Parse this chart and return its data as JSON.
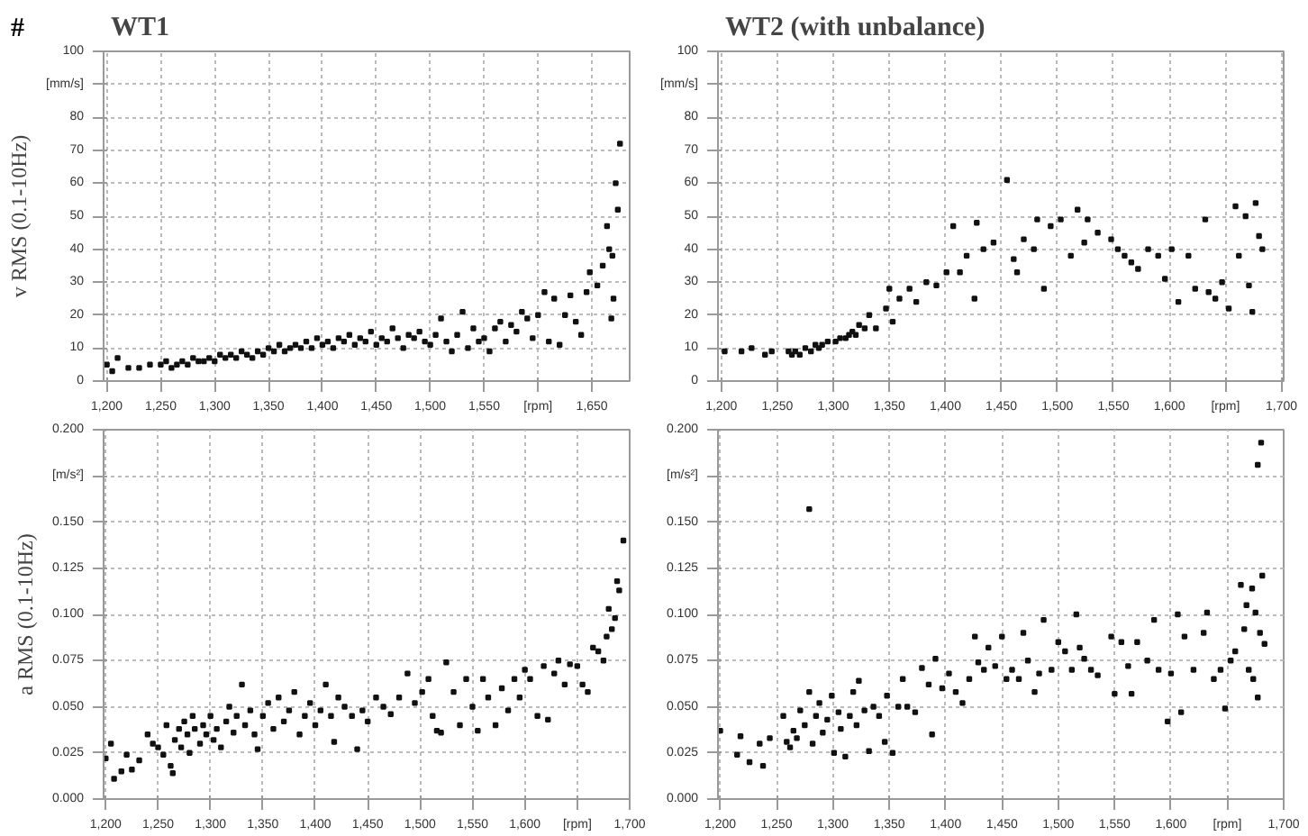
{
  "chart_data": [
    {
      "type": "scatter",
      "title": "WT1",
      "ylabel": "v RMS (0.1-10Hz)",
      "annotations": [
        "#"
      ],
      "xlim": [
        1197,
        1685
      ],
      "ylim": [
        0,
        100
      ],
      "xticks": [
        {
          "value": 1200,
          "label": "1,200"
        },
        {
          "value": 1250,
          "label": "1,250"
        },
        {
          "value": 1300,
          "label": "1,300"
        },
        {
          "value": 1350,
          "label": "1,350"
        },
        {
          "value": 1400,
          "label": "1,400"
        },
        {
          "value": 1450,
          "label": "1,450"
        },
        {
          "value": 1500,
          "label": "1,500"
        },
        {
          "value": 1550,
          "label": "1,550"
        },
        {
          "value": 1600,
          "label": "[rpm]"
        },
        {
          "value": 1650,
          "label": "1,650"
        }
      ],
      "yticks": [
        0,
        10,
        20,
        30,
        40,
        50,
        60,
        70,
        80,
        {
          "value": 90,
          "label": "[mm/s]"
        },
        100
      ],
      "grid": true,
      "marker": "square",
      "series": [
        {
          "color": "#111111",
          "x": [
            1200,
            1205,
            1210,
            1220,
            1230,
            1240,
            1250,
            1255,
            1260,
            1265,
            1270,
            1275,
            1280,
            1285,
            1290,
            1295,
            1300,
            1305,
            1310,
            1315,
            1320,
            1325,
            1330,
            1335,
            1340,
            1345,
            1350,
            1355,
            1360,
            1365,
            1370,
            1375,
            1380,
            1385,
            1390,
            1395,
            1400,
            1405,
            1410,
            1415,
            1420,
            1425,
            1430,
            1435,
            1440,
            1445,
            1450,
            1455,
            1460,
            1465,
            1470,
            1475,
            1480,
            1485,
            1490,
            1495,
            1500,
            1505,
            1510,
            1515,
            1520,
            1525,
            1530,
            1535,
            1540,
            1545,
            1550,
            1555,
            1560,
            1565,
            1570,
            1575,
            1580,
            1585,
            1590,
            1595,
            1600,
            1606,
            1610,
            1615,
            1620,
            1625,
            1630,
            1635,
            1640,
            1645,
            1648,
            1655,
            1660,
            1664,
            1666,
            1668,
            1669,
            1670,
            1672,
            1674,
            1676
          ],
          "values": [
            5,
            3,
            7,
            4,
            4,
            5,
            5,
            6,
            4,
            5,
            6,
            5,
            7,
            6,
            6,
            7,
            6,
            8,
            7,
            8,
            7,
            9,
            8,
            7,
            9,
            8,
            10,
            9,
            11,
            9,
            10,
            11,
            10,
            12,
            10,
            13,
            11,
            12,
            10,
            13,
            12,
            14,
            11,
            13,
            12,
            15,
            11,
            13,
            12,
            16,
            13,
            10,
            14,
            13,
            15,
            12,
            11,
            14,
            19,
            12,
            9,
            14,
            21,
            10,
            16,
            12,
            13,
            9,
            16,
            18,
            12,
            17,
            15,
            21,
            19,
            13,
            20,
            27,
            12,
            25,
            11,
            20,
            26,
            18,
            14,
            27,
            33,
            29,
            35,
            47,
            40,
            19,
            38,
            25,
            60,
            52,
            72
          ]
        }
      ]
    },
    {
      "type": "scatter",
      "title": "WT2 (with unbalance)",
      "xlim": [
        1197,
        1702
      ],
      "ylim": [
        0,
        100
      ],
      "xticks": [
        {
          "value": 1200,
          "label": "1,200"
        },
        {
          "value": 1250,
          "label": "1,250"
        },
        {
          "value": 1300,
          "label": "1,300"
        },
        {
          "value": 1350,
          "label": "1,350"
        },
        {
          "value": 1400,
          "label": "1,400"
        },
        {
          "value": 1450,
          "label": "1,450"
        },
        {
          "value": 1500,
          "label": "1,500"
        },
        {
          "value": 1550,
          "label": "1,550"
        },
        {
          "value": 1600,
          "label": "1,600"
        },
        {
          "value": 1650,
          "label": "[rpm]"
        },
        {
          "value": 1700,
          "label": "1,700"
        }
      ],
      "yticks": [
        0,
        10,
        20,
        30,
        40,
        50,
        60,
        70,
        80,
        {
          "value": 90,
          "label": "[mm/s]"
        },
        100
      ],
      "grid": true,
      "marker": "square",
      "series": [
        {
          "color": "#111111",
          "x": [
            1203,
            1218,
            1227,
            1239,
            1245,
            1260,
            1263,
            1266,
            1270,
            1275,
            1280,
            1284,
            1287,
            1290,
            1295,
            1302,
            1306,
            1311,
            1314,
            1317,
            1320,
            1323,
            1328,
            1332,
            1338,
            1347,
            1350,
            1353,
            1359,
            1368,
            1374,
            1383,
            1392,
            1401,
            1407,
            1413,
            1419,
            1426,
            1428,
            1434,
            1443,
            1455,
            1461,
            1464,
            1470,
            1479,
            1482,
            1488,
            1494,
            1503,
            1512,
            1518,
            1524,
            1527,
            1536,
            1548,
            1554,
            1560,
            1566,
            1572,
            1581,
            1590,
            1596,
            1602,
            1608,
            1617,
            1623,
            1632,
            1635,
            1641,
            1647,
            1653,
            1659,
            1662,
            1668,
            1671,
            1674,
            1677,
            1680,
            1683
          ],
          "values": [
            9,
            9,
            10,
            8,
            9,
            9,
            8,
            9,
            8,
            10,
            9,
            11,
            10,
            11,
            12,
            12,
            13,
            13,
            14,
            15,
            14,
            17,
            16,
            20,
            16,
            22,
            28,
            18,
            25,
            28,
            24,
            30,
            29,
            33,
            47,
            33,
            38,
            25,
            48,
            40,
            42,
            61,
            37,
            33,
            43,
            40,
            49,
            28,
            47,
            49,
            38,
            52,
            42,
            49,
            45,
            43,
            40,
            38,
            36,
            34,
            40,
            38,
            31,
            40,
            24,
            38,
            28,
            49,
            27,
            25,
            30,
            22,
            53,
            38,
            50,
            29,
            21,
            54,
            44,
            40
          ]
        }
      ]
    },
    {
      "type": "scatter",
      "ylabel": "a RMS (0.1-10Hz)",
      "xlim": [
        1198,
        1700
      ],
      "ylim": [
        0,
        0.2
      ],
      "xticks": [
        {
          "value": 1200,
          "label": "1,200"
        },
        {
          "value": 1250,
          "label": "1,250"
        },
        {
          "value": 1300,
          "label": "1,300"
        },
        {
          "value": 1350,
          "label": "1,350"
        },
        {
          "value": 1400,
          "label": "1,400"
        },
        {
          "value": 1450,
          "label": "1,450"
        },
        {
          "value": 1500,
          "label": "1,500"
        },
        {
          "value": 1550,
          "label": "1,550"
        },
        {
          "value": 1600,
          "label": "1,600"
        },
        {
          "value": 1650,
          "label": "[rpm]"
        },
        {
          "value": 1700,
          "label": "1,700"
        }
      ],
      "yticks": [
        {
          "value": 0,
          "label": "0.000"
        },
        {
          "value": 0.025,
          "label": "0.025"
        },
        {
          "value": 0.05,
          "label": "0.050"
        },
        {
          "value": 0.075,
          "label": "0.075"
        },
        {
          "value": 0.1,
          "label": "0.100"
        },
        {
          "value": 0.125,
          "label": "0.125"
        },
        {
          "value": 0.15,
          "label": "0.150"
        },
        {
          "value": 0.175,
          "label": "[m/s²]"
        },
        {
          "value": 0.2,
          "label": "0.200"
        }
      ],
      "grid": true,
      "marker": "square",
      "series": [
        {
          "color": "#111111",
          "x": [
            1200,
            1205,
            1208,
            1215,
            1220,
            1225,
            1232,
            1240,
            1245,
            1250,
            1255,
            1258,
            1262,
            1264,
            1266,
            1270,
            1272,
            1275,
            1278,
            1280,
            1283,
            1285,
            1290,
            1293,
            1296,
            1300,
            1303,
            1306,
            1310,
            1315,
            1318,
            1322,
            1325,
            1330,
            1333,
            1338,
            1342,
            1345,
            1350,
            1355,
            1360,
            1365,
            1370,
            1375,
            1380,
            1385,
            1390,
            1395,
            1400,
            1405,
            1410,
            1415,
            1418,
            1422,
            1428,
            1435,
            1440,
            1445,
            1450,
            1458,
            1465,
            1472,
            1480,
            1488,
            1495,
            1502,
            1508,
            1512,
            1516,
            1520,
            1525,
            1532,
            1538,
            1544,
            1550,
            1555,
            1560,
            1565,
            1572,
            1578,
            1584,
            1590,
            1595,
            1600,
            1605,
            1612,
            1618,
            1622,
            1628,
            1632,
            1638,
            1643,
            1650,
            1655,
            1660,
            1665,
            1670,
            1675,
            1678,
            1680,
            1683,
            1686,
            1688,
            1690,
            1694
          ],
          "values": [
            0.022,
            0.03,
            0.011,
            0.015,
            0.024,
            0.016,
            0.021,
            0.035,
            0.03,
            0.028,
            0.024,
            0.04,
            0.018,
            0.014,
            0.032,
            0.038,
            0.028,
            0.042,
            0.035,
            0.025,
            0.045,
            0.038,
            0.03,
            0.04,
            0.035,
            0.045,
            0.032,
            0.038,
            0.028,
            0.042,
            0.05,
            0.036,
            0.045,
            0.062,
            0.04,
            0.048,
            0.035,
            0.027,
            0.045,
            0.052,
            0.038,
            0.055,
            0.042,
            0.048,
            0.058,
            0.035,
            0.045,
            0.052,
            0.04,
            0.048,
            0.062,
            0.045,
            0.031,
            0.055,
            0.05,
            0.045,
            0.027,
            0.048,
            0.042,
            0.055,
            0.05,
            0.046,
            0.055,
            0.068,
            0.052,
            0.058,
            0.065,
            0.045,
            0.037,
            0.036,
            0.074,
            0.058,
            0.04,
            0.065,
            0.05,
            0.037,
            0.065,
            0.055,
            0.04,
            0.06,
            0.048,
            0.065,
            0.055,
            0.07,
            0.065,
            0.045,
            0.072,
            0.043,
            0.068,
            0.075,
            0.062,
            0.073,
            0.072,
            0.062,
            0.058,
            0.082,
            0.08,
            0.075,
            0.088,
            0.103,
            0.092,
            0.098,
            0.118,
            0.113,
            0.14
          ]
        }
      ]
    },
    {
      "type": "scatter",
      "xlim": [
        1198,
        1700
      ],
      "ylim": [
        0,
        0.2
      ],
      "xticks": [
        {
          "value": 1200,
          "label": "1,200"
        },
        {
          "value": 1250,
          "label": "1,250"
        },
        {
          "value": 1300,
          "label": "1,300"
        },
        {
          "value": 1350,
          "label": "1,350"
        },
        {
          "value": 1400,
          "label": "1,400"
        },
        {
          "value": 1450,
          "label": "1,450"
        },
        {
          "value": 1500,
          "label": "1,500"
        },
        {
          "value": 1550,
          "label": "1,550"
        },
        {
          "value": 1600,
          "label": "1,600"
        },
        {
          "value": 1650,
          "label": "[rpm]"
        },
        {
          "value": 1700,
          "label": "1,700"
        }
      ],
      "yticks": [
        {
          "value": 0,
          "label": "0.000"
        },
        {
          "value": 0.025,
          "label": "0.025"
        },
        {
          "value": 0.05,
          "label": "0.050"
        },
        {
          "value": 0.075,
          "label": "0.075"
        },
        {
          "value": 0.1,
          "label": "0.100"
        },
        {
          "value": 0.125,
          "label": "0.125"
        },
        {
          "value": 0.15,
          "label": "0.150"
        },
        {
          "value": 0.175,
          "label": "[m/s²]"
        },
        {
          "value": 0.2,
          "label": "0.200"
        }
      ],
      "grid": true,
      "marker": "square",
      "series": [
        {
          "color": "#111111",
          "x": [
            1200,
            1215,
            1218,
            1226,
            1235,
            1238,
            1244,
            1256,
            1259,
            1262,
            1265,
            1268,
            1271,
            1275,
            1279,
            1279,
            1282,
            1285,
            1288,
            1291,
            1295,
            1299,
            1301,
            1305,
            1307,
            1311,
            1315,
            1318,
            1321,
            1323,
            1328,
            1332,
            1336,
            1341,
            1346,
            1348,
            1353,
            1358,
            1362,
            1366,
            1373,
            1379,
            1385,
            1388,
            1391,
            1397,
            1403,
            1409,
            1415,
            1421,
            1426,
            1429,
            1434,
            1438,
            1444,
            1450,
            1454,
            1459,
            1465,
            1469,
            1473,
            1479,
            1483,
            1487,
            1494,
            1500,
            1506,
            1512,
            1516,
            1519,
            1523,
            1529,
            1535,
            1547,
            1550,
            1556,
            1562,
            1565,
            1570,
            1579,
            1585,
            1589,
            1597,
            1600,
            1606,
            1609,
            1612,
            1620,
            1629,
            1632,
            1638,
            1644,
            1648,
            1653,
            1657,
            1662,
            1665,
            1667,
            1669,
            1672,
            1673,
            1675,
            1677,
            1677,
            1679,
            1680,
            1681,
            1683
          ],
          "values": [
            0.037,
            0.024,
            0.034,
            0.02,
            0.03,
            0.018,
            0.033,
            0.045,
            0.031,
            0.028,
            0.037,
            0.033,
            0.048,
            0.04,
            0.058,
            0.157,
            0.03,
            0.045,
            0.052,
            0.036,
            0.043,
            0.056,
            0.025,
            0.047,
            0.038,
            0.023,
            0.045,
            0.058,
            0.04,
            0.064,
            0.048,
            0.026,
            0.05,
            0.045,
            0.031,
            0.056,
            0.025,
            0.05,
            0.065,
            0.05,
            0.047,
            0.071,
            0.062,
            0.035,
            0.076,
            0.06,
            0.068,
            0.058,
            0.052,
            0.065,
            0.088,
            0.074,
            0.07,
            0.082,
            0.072,
            0.088,
            0.065,
            0.07,
            0.065,
            0.09,
            0.075,
            0.058,
            0.068,
            0.097,
            0.07,
            0.085,
            0.08,
            0.07,
            0.1,
            0.082,
            0.076,
            0.07,
            0.067,
            0.088,
            0.057,
            0.085,
            0.072,
            0.057,
            0.085,
            0.075,
            0.097,
            0.07,
            0.042,
            0.068,
            0.1,
            0.047,
            0.088,
            0.07,
            0.09,
            0.101,
            0.065,
            0.07,
            0.049,
            0.075,
            0.08,
            0.116,
            0.092,
            0.105,
            0.07,
            0.114,
            0.065,
            0.101,
            0.055,
            0.181,
            0.09,
            0.193,
            0.121,
            0.084
          ]
        }
      ]
    }
  ]
}
